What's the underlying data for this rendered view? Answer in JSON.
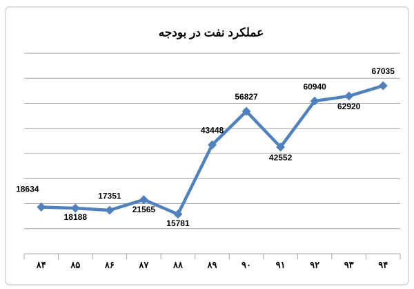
{
  "chart_data": {
    "type": "line",
    "title": "عملکرد نفت در بودجه",
    "categories": [
      "۸۴",
      "۸۵",
      "۸۶",
      "۸۷",
      "۸۸",
      "۸۹",
      "۹۰",
      "۹۱",
      "۹۲",
      "۹۳",
      "۹۴"
    ],
    "values": [
      18634,
      18188,
      17351,
      21565,
      15781,
      43448,
      56827,
      42552,
      60940,
      62920,
      67035
    ],
    "color": "#4f81bd",
    "ylim": [
      0,
      80000
    ],
    "yticks": [
      0,
      10000,
      20000,
      30000,
      40000,
      50000,
      60000,
      70000,
      80000
    ],
    "grid": true
  }
}
